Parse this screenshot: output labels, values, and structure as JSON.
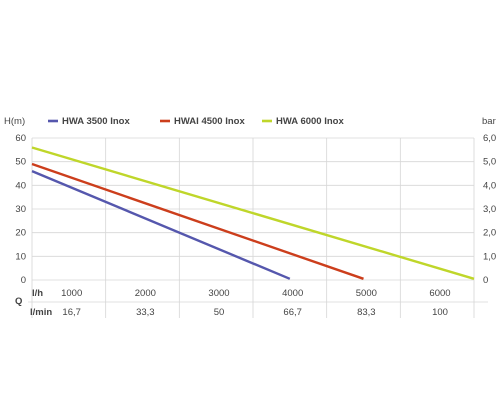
{
  "chart_data": {
    "type": "line",
    "left_axis_title": "H(m)",
    "right_axis_title": "bar",
    "left_ticks": [
      "60",
      "50",
      "40",
      "30",
      "20",
      "10",
      "0"
    ],
    "right_ticks": [
      "6,0",
      "5,0",
      "4,0",
      "3,0",
      "2,0",
      "1,0",
      "0"
    ],
    "q_label": "Q",
    "lh_label": "l/h",
    "lmin_label": "l/min",
    "lh_ticks": [
      "1000",
      "2000",
      "3000",
      "4000",
      "5000",
      "6000"
    ],
    "lmin_ticks": [
      "16,7",
      "33,3",
      "50",
      "66,7",
      "83,3",
      "100"
    ],
    "xlim": [
      0,
      6000
    ],
    "ylim": [
      0,
      60
    ],
    "grid": true,
    "legend_position": "top",
    "series": [
      {
        "name": "HWA 3500 Inox",
        "color": "#5557ad",
        "x": [
          0,
          3500
        ],
        "y": [
          46,
          0.5
        ]
      },
      {
        "name": "HWAI 4500 Inox",
        "color": "#cc3e1c",
        "x": [
          0,
          4500
        ],
        "y": [
          49,
          0.5
        ]
      },
      {
        "name": "HWA 6000 Inox",
        "color": "#bfd62a",
        "x": [
          0,
          6000
        ],
        "y": [
          56,
          0.5
        ]
      }
    ]
  }
}
